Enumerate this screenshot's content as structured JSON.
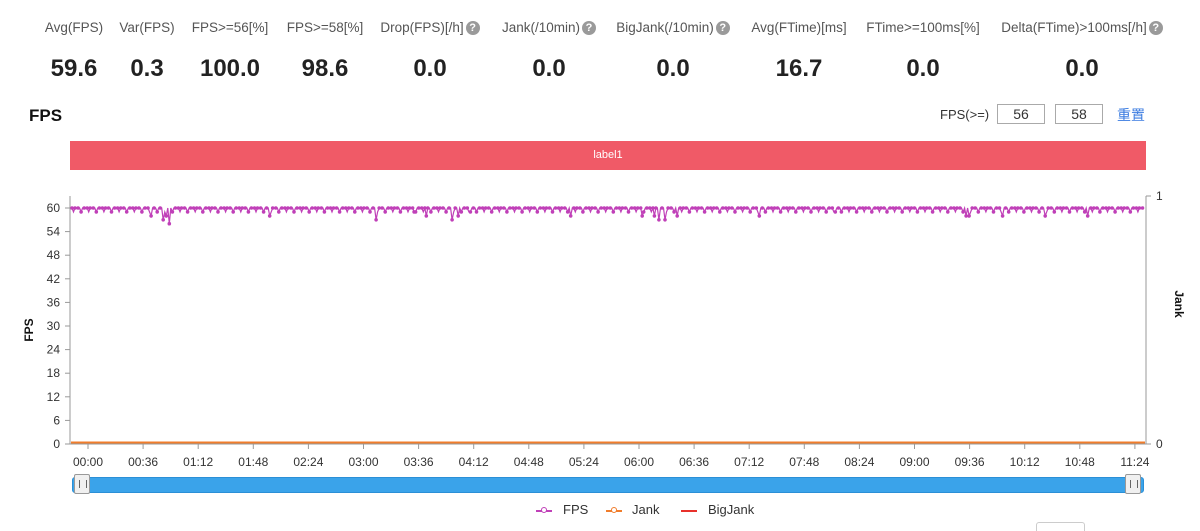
{
  "stats": [
    {
      "label": "Avg(FPS)",
      "value": "59.6",
      "help": false
    },
    {
      "label": "Var(FPS)",
      "value": "0.3",
      "help": false
    },
    {
      "label": "FPS>=56[%]",
      "value": "100.0",
      "help": false
    },
    {
      "label": "FPS>=58[%]",
      "value": "98.6",
      "help": false
    },
    {
      "label": "Drop(FPS)[/h]",
      "value": "0.0",
      "help": true
    },
    {
      "label": "Jank(/10min)",
      "value": "0.0",
      "help": true
    },
    {
      "label": "BigJank(/10min)",
      "value": "0.0",
      "help": true
    },
    {
      "label": "Avg(FTime)[ms]",
      "value": "16.7",
      "help": false
    },
    {
      "label": "FTime>=100ms[%]",
      "value": "0.0",
      "help": false
    },
    {
      "label": "Delta(FTime)>100ms[/h]",
      "value": "0.0",
      "help": true
    }
  ],
  "help_glyph": "?",
  "section_title": "FPS",
  "threshold": {
    "label": "FPS(>=)",
    "value1": "56",
    "value2": "58",
    "reset_label": "重置"
  },
  "label_band": "label1",
  "colors": {
    "fps": "#c040b8",
    "jank": "#f07d2c",
    "bigjank": "#e8312b",
    "band": "#f05a67",
    "zoom": "#3aa3ea",
    "link": "#3a7be0"
  },
  "legend": [
    {
      "name": "FPS",
      "color": "#c040b8",
      "marker": "circle"
    },
    {
      "name": "Jank",
      "color": "#f07d2c",
      "marker": "circle"
    },
    {
      "name": "BigJank",
      "color": "#e8312b",
      "marker": "line"
    }
  ],
  "chart_data": {
    "type": "line",
    "ylabel": "FPS",
    "y2label": "Jank",
    "ylim": [
      0,
      60
    ],
    "y2lim": [
      0,
      1
    ],
    "yticks": [
      0,
      6,
      12,
      18,
      24,
      30,
      36,
      42,
      48,
      54,
      60
    ],
    "y2ticks": [
      0,
      1
    ],
    "xticks": [
      "00:00",
      "00:36",
      "01:12",
      "01:48",
      "02:24",
      "03:00",
      "03:36",
      "04:12",
      "04:48",
      "05:24",
      "06:00",
      "06:36",
      "07:12",
      "07:48",
      "08:24",
      "09:00",
      "09:36",
      "10:12",
      "10:48",
      "11:24"
    ],
    "x_range_seconds": [
      0,
      705
    ],
    "grid": false,
    "legend_position": "bottom",
    "series": [
      {
        "name": "FPS",
        "baseline": 60,
        "alt": 59,
        "dips": [
          [
            52,
            58
          ],
          [
            60,
            57
          ],
          [
            62,
            58
          ],
          [
            64,
            56
          ],
          [
            130,
            58
          ],
          [
            200,
            57
          ],
          [
            225,
            59
          ],
          [
            233,
            58
          ],
          [
            250,
            57
          ],
          [
            254,
            58
          ],
          [
            262,
            59
          ],
          [
            328,
            58
          ],
          [
            375,
            58
          ],
          [
            383,
            58
          ],
          [
            386,
            57
          ],
          [
            390,
            57
          ],
          [
            398,
            58
          ],
          [
            452,
            58
          ],
          [
            502,
            59
          ],
          [
            588,
            58
          ],
          [
            590,
            58
          ],
          [
            612,
            58
          ],
          [
            640,
            58
          ],
          [
            668,
            58
          ]
        ]
      },
      {
        "name": "Jank",
        "values_constant": 0
      },
      {
        "name": "BigJank",
        "values_constant": 0
      }
    ]
  }
}
